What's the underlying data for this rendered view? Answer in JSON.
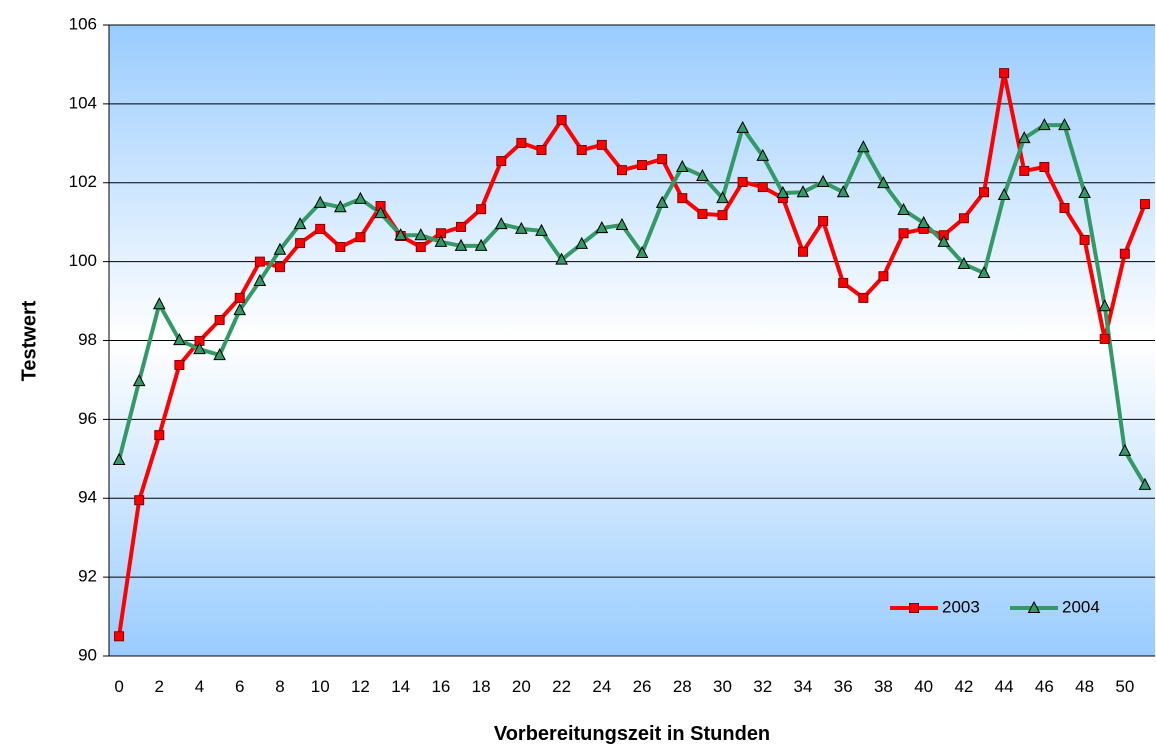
{
  "chart_data": {
    "type": "line",
    "x_label": "Vorbereitungszeit in Stunden",
    "y_label": "Testwert",
    "categories": [
      "0",
      null,
      "2",
      null,
      "4",
      null,
      "6",
      null,
      "8",
      null,
      "10",
      null,
      "12",
      null,
      "14",
      null,
      "16",
      null,
      "18",
      null,
      "20",
      null,
      "22",
      null,
      "24",
      null,
      "26",
      null,
      "28",
      null,
      "30",
      null,
      "32",
      null,
      "34",
      null,
      "36",
      null,
      "38",
      null,
      "40",
      null,
      "42",
      null,
      "44",
      null,
      "46",
      null,
      "48",
      null,
      "50",
      null
    ],
    "series": [
      {
        "name": "2003",
        "color": "#ff0000",
        "marker": "square",
        "values": [
          90.5,
          93.95,
          95.6,
          97.38,
          97.99,
          98.52,
          99.08,
          100.0,
          99.86,
          100.47,
          100.83,
          100.37,
          100.62,
          101.41,
          100.65,
          100.37,
          100.72,
          100.88,
          101.33,
          102.55,
          103.01,
          102.83,
          103.59,
          102.83,
          102.96,
          102.32,
          102.45,
          102.6,
          101.61,
          101.21,
          101.18,
          102.02,
          101.89,
          101.61,
          100.25,
          101.03,
          99.46,
          99.08,
          99.63,
          100.72,
          100.83,
          100.67,
          101.1,
          101.76,
          104.78,
          102.3,
          102.4,
          101.36,
          100.55,
          98.04,
          100.2,
          101.46
        ]
      },
      {
        "name": "2004",
        "color": "#339966",
        "marker": "triangle",
        "values": [
          94.97,
          96.97,
          98.92,
          98.01,
          97.78,
          97.63,
          98.77,
          99.51,
          100.3,
          100.95,
          101.49,
          101.38,
          101.59,
          101.23,
          100.67,
          100.67,
          100.5,
          100.4,
          100.4,
          100.95,
          100.83,
          100.78,
          100.05,
          100.45,
          100.85,
          100.93,
          100.22,
          101.49,
          102.4,
          102.17,
          101.61,
          103.39,
          102.68,
          101.74,
          101.76,
          102.02,
          101.76,
          102.9,
          101.99,
          101.31,
          100.98,
          100.5,
          99.94,
          99.71,
          101.69,
          103.13,
          103.46,
          103.46,
          101.74,
          98.87,
          95.2,
          94.34
        ]
      }
    ],
    "ylim": [
      90,
      106
    ],
    "yticks": [
      90,
      92,
      94,
      96,
      98,
      100,
      102,
      104,
      106
    ],
    "grid": true,
    "legend": "lower right"
  }
}
